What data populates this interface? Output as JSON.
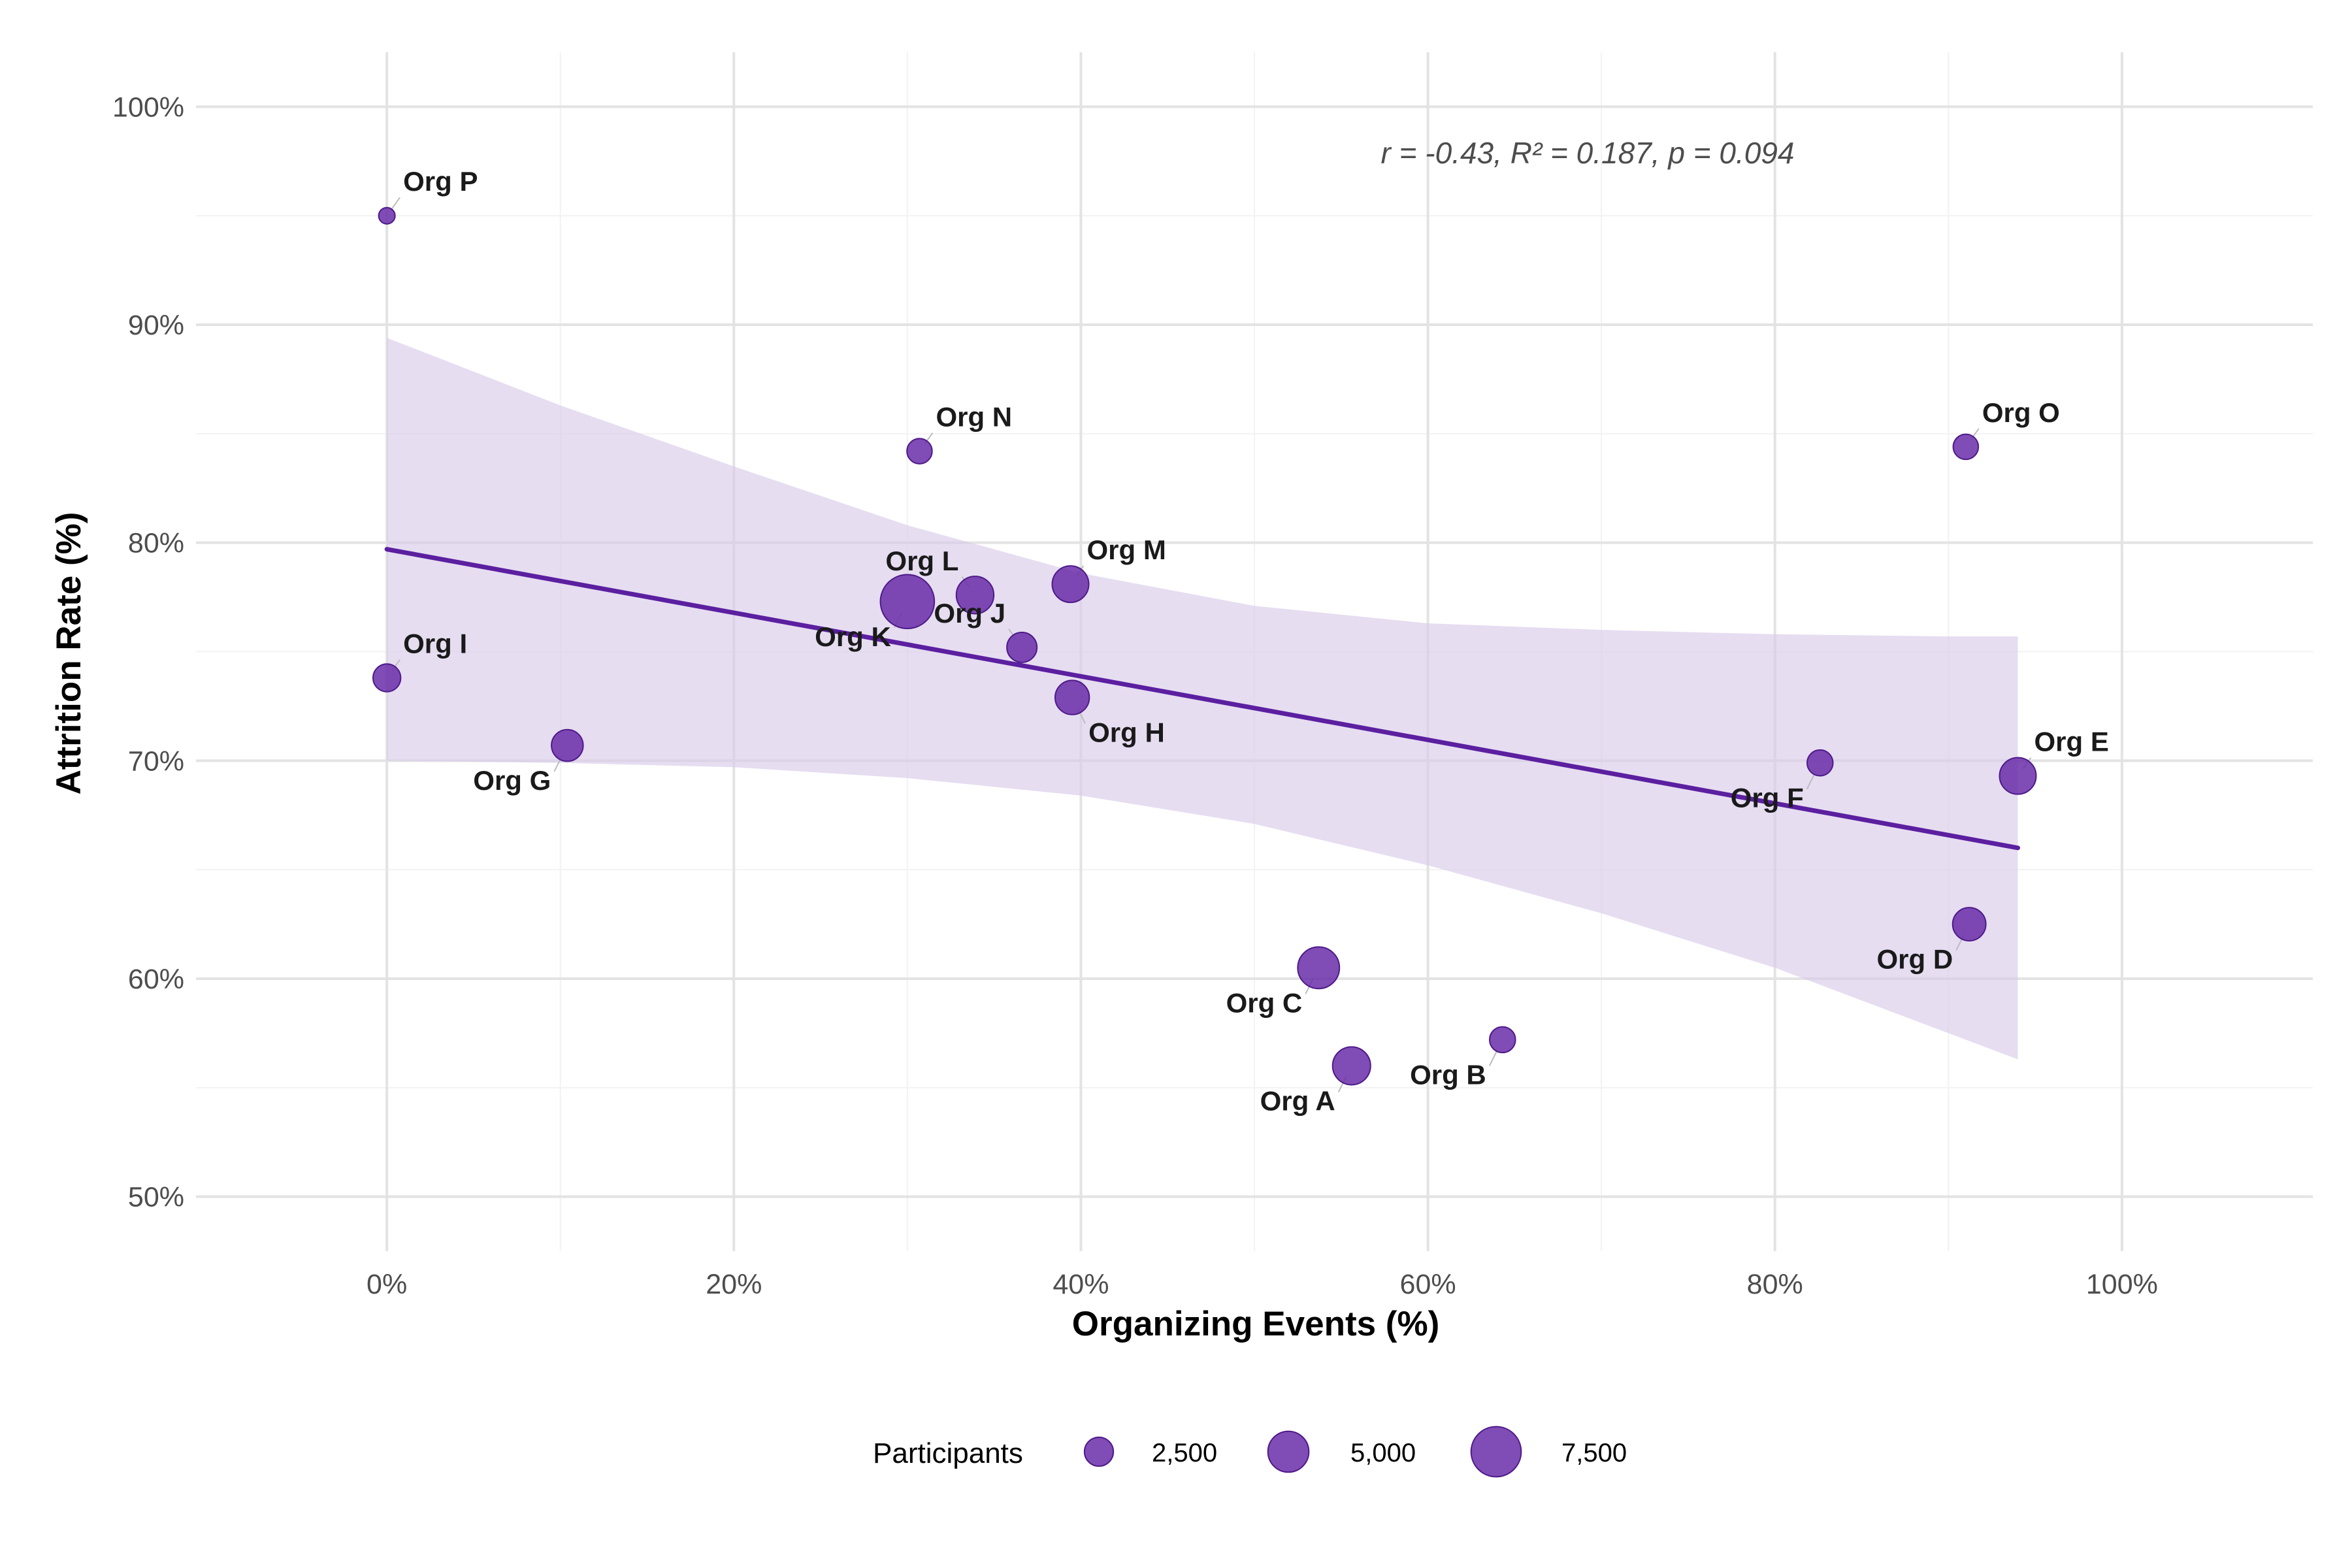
{
  "chart_data": {
    "type": "scatter",
    "title": "",
    "xlabel": "Organizing Events (%)",
    "ylabel": "Attrition Rate (%)",
    "xlim": [
      -0.11,
      1.11
    ],
    "ylim": [
      0.475,
      1.025
    ],
    "x_ticks": [
      0,
      0.2,
      0.4,
      0.6,
      0.8,
      1.0
    ],
    "x_tick_labels": [
      "0%",
      "20%",
      "40%",
      "60%",
      "80%",
      "100%"
    ],
    "y_ticks": [
      0.5,
      0.6,
      0.7,
      0.8,
      0.9,
      1.0
    ],
    "y_tick_labels": [
      "50%",
      "60%",
      "70%",
      "80%",
      "90%",
      "100%"
    ],
    "grid": true,
    "annotation": "r = -0.43, R² = 0.187, p = 0.094",
    "point_color": "#6a2da8",
    "trend_color": "#5b1fa0",
    "band_color": "#d9cbea",
    "points": [
      {
        "label": "Org A",
        "x": 0.556,
        "y": 0.56,
        "size": 4300,
        "label_pos": "bottom-left"
      },
      {
        "label": "Org B",
        "x": 0.643,
        "y": 0.572,
        "size": 2000,
        "label_pos": "bottom-left"
      },
      {
        "label": "Org C",
        "x": 0.537,
        "y": 0.605,
        "size": 5200,
        "label_pos": "bottom-left"
      },
      {
        "label": "Org D",
        "x": 0.912,
        "y": 0.625,
        "size": 3300,
        "label_pos": "bottom-left"
      },
      {
        "label": "Org E",
        "x": 0.94,
        "y": 0.693,
        "size": 4000,
        "label_pos": "top-right"
      },
      {
        "label": "Org F",
        "x": 0.826,
        "y": 0.699,
        "size": 2000,
        "label_pos": "bottom-left"
      },
      {
        "label": "Org G",
        "x": 0.104,
        "y": 0.707,
        "size": 3000,
        "label_pos": "bottom-left"
      },
      {
        "label": "Org H",
        "x": 0.395,
        "y": 0.729,
        "size": 3500,
        "label_pos": "bottom-right"
      },
      {
        "label": "Org I",
        "x": 0.0,
        "y": 0.738,
        "size": 2300,
        "label_pos": "top-right"
      },
      {
        "label": "Org J",
        "x": 0.366,
        "y": 0.752,
        "size": 2700,
        "label_pos": "top-left"
      },
      {
        "label": "Org K",
        "x": 0.3,
        "y": 0.773,
        "size": 8700,
        "label_pos": "bottom-left"
      },
      {
        "label": "Org L",
        "x": 0.339,
        "y": 0.776,
        "size": 4200,
        "label_pos": "top-left"
      },
      {
        "label": "Org M",
        "x": 0.394,
        "y": 0.781,
        "size": 4000,
        "label_pos": "top-right"
      },
      {
        "label": "Org N",
        "x": 0.307,
        "y": 0.842,
        "size": 1900,
        "label_pos": "top-right"
      },
      {
        "label": "Org O",
        "x": 0.91,
        "y": 0.844,
        "size": 1900,
        "label_pos": "top-right"
      },
      {
        "label": "Org P",
        "x": 0.0,
        "y": 0.95,
        "size": 800,
        "label_pos": "top-right"
      }
    ],
    "trend_line": {
      "x": [
        0.0,
        0.94
      ],
      "y": [
        0.797,
        0.66
      ]
    },
    "confidence_band": {
      "x": [
        0.0,
        0.1,
        0.2,
        0.3,
        0.4,
        0.5,
        0.6,
        0.7,
        0.8,
        0.9,
        0.94
      ],
      "upper": [
        0.894,
        0.863,
        0.835,
        0.808,
        0.786,
        0.771,
        0.763,
        0.76,
        0.758,
        0.757,
        0.757
      ],
      "lower": [
        0.7,
        0.699,
        0.697,
        0.692,
        0.684,
        0.671,
        0.652,
        0.63,
        0.605,
        0.575,
        0.563
      ]
    },
    "legend": {
      "title": "Participants",
      "placement": "bottom",
      "entries": [
        {
          "label": "2,500",
          "size": 2500
        },
        {
          "label": "5,000",
          "size": 5000
        },
        {
          "label": "7,500",
          "size": 7500
        }
      ]
    }
  }
}
